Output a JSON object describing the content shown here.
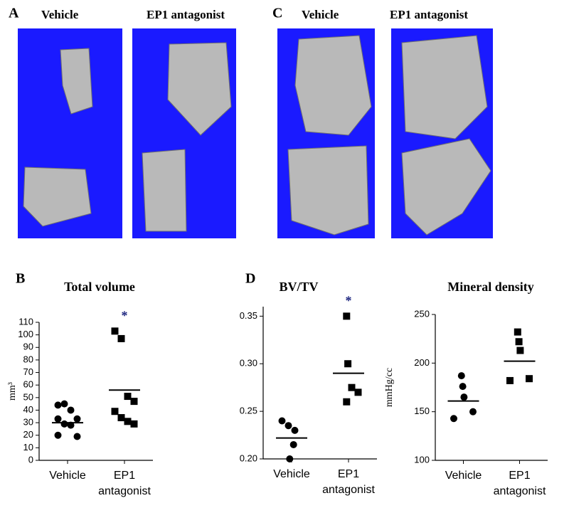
{
  "panels": [
    {
      "letter": "A",
      "labels": [
        "Vehicle",
        "EP1 antagonist"
      ]
    },
    {
      "letter": "C",
      "labels": [
        "Vehicle",
        "EP1 antagonist"
      ]
    }
  ],
  "chart_data": [
    {
      "type": "dot",
      "panel_label": "B",
      "title": "Total volume",
      "y_label": "mm³",
      "categories": [
        "Vehicle",
        "EP1 antagonist"
      ],
      "markers": [
        "circle",
        "square"
      ],
      "color": "#000000",
      "points": [
        [
          44,
          45,
          40,
          33,
          33,
          29,
          28,
          19,
          20
        ],
        [
          103,
          97,
          51,
          47,
          39,
          34,
          31,
          29
        ]
      ],
      "means": [
        30,
        56
      ],
      "annotation": "*",
      "ylim": [
        0,
        110
      ],
      "yticks": [
        0,
        10,
        20,
        30,
        40,
        50,
        60,
        70,
        80,
        90,
        100,
        110
      ]
    },
    {
      "type": "dot",
      "panel_label": "D",
      "title": "BV/TV",
      "categories": [
        "Vehicle",
        "EP1 antagonist"
      ],
      "markers": [
        "circle",
        "square"
      ],
      "color": "#000000",
      "points": [
        [
          0.24,
          0.235,
          0.23,
          0.215,
          0.2
        ],
        [
          0.35,
          0.3,
          0.275,
          0.27,
          0.26
        ]
      ],
      "means": [
        0.222,
        0.29
      ],
      "annotation": "*",
      "ylim": [
        0.2,
        0.36
      ],
      "yticks": [
        {
          "value": 0.2,
          "label": "0.20"
        },
        0.25,
        {
          "value": 0.3,
          "label": "0.30"
        },
        0.35
      ]
    },
    {
      "type": "dot",
      "title": "Mineral density",
      "y_label": "mmHg/cc",
      "categories": [
        "Vehicle",
        "EP1 antagonist"
      ],
      "markers": [
        "circle",
        "square"
      ],
      "color": "#000000",
      "points": [
        [
          187,
          176,
          165,
          150,
          143
        ],
        [
          232,
          222,
          213,
          184,
          182
        ]
      ],
      "means": [
        161,
        202
      ],
      "ylim": [
        100,
        250
      ],
      "yticks": [
        100,
        150,
        200,
        250
      ]
    }
  ]
}
